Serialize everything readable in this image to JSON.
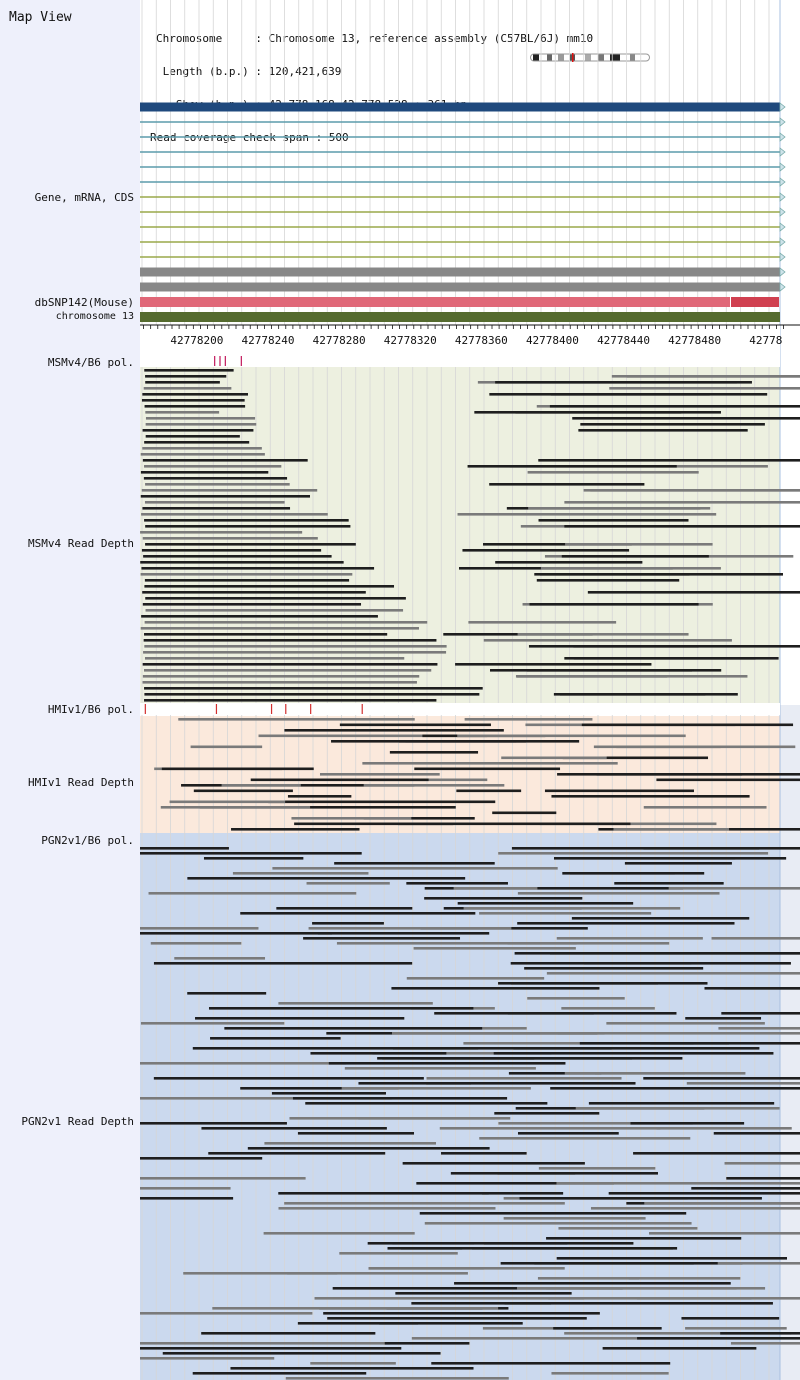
{
  "header": {
    "title": "Map View",
    "info": {
      "chromosome": "Chromosome     : Chromosome 13, reference assembly (C57BL/6J) mm10",
      "length": " Length (b.p.) : 120,421,639",
      "show": "   Show (b.p.) : 42,778,168-42,778,528 : 361 bp",
      "span": "Read coverage check span : 500"
    }
  },
  "track_labels": {
    "gene": "Gene, mRNA, CDS",
    "dbsnp": "dbSNP142(Mouse)",
    "chrom": "chromosome 13",
    "msm_pol": "MSMv4/B6 pol.",
    "msm_depth": "MSMv4 Read Depth",
    "hmi_pol": "HMIv1/B6 pol.",
    "hmi_depth": "HMIv1 Read Depth",
    "pgn_pol": "PGN2v1/B6 pol.",
    "pgn_depth": "PGN2v1 Read Depth"
  },
  "ruler": {
    "ticks": [
      "42778200",
      "42778240",
      "42778280",
      "42778320",
      "42778360",
      "42778400",
      "42778440",
      "42778480",
      "42778"
    ]
  },
  "colors": {
    "gene_main": "#1f497d",
    "transcript": "#5b9bab",
    "cds": "#9aa84a",
    "gray_track": "#888888",
    "dbsnp": "#e06878",
    "dbsnp_dark": "#d04050",
    "chromosome_bar": "#556b2f",
    "msm_bg": "#edf0e0",
    "hmi_bg": "#fbe9dc",
    "pgn_bg": "#cbd9ee",
    "pol_mark": "#c2185b",
    "pol_mark_red": "#d32f2f",
    "read_dark": "#1e1e1e",
    "read_gray": "#7a7a7a"
  },
  "polymorphisms": {
    "msm": [
      42778210,
      42778213,
      42778216,
      42778225
    ],
    "hmi": [
      42778171,
      42778211,
      42778242,
      42778250,
      42778264,
      42778293
    ]
  }
}
